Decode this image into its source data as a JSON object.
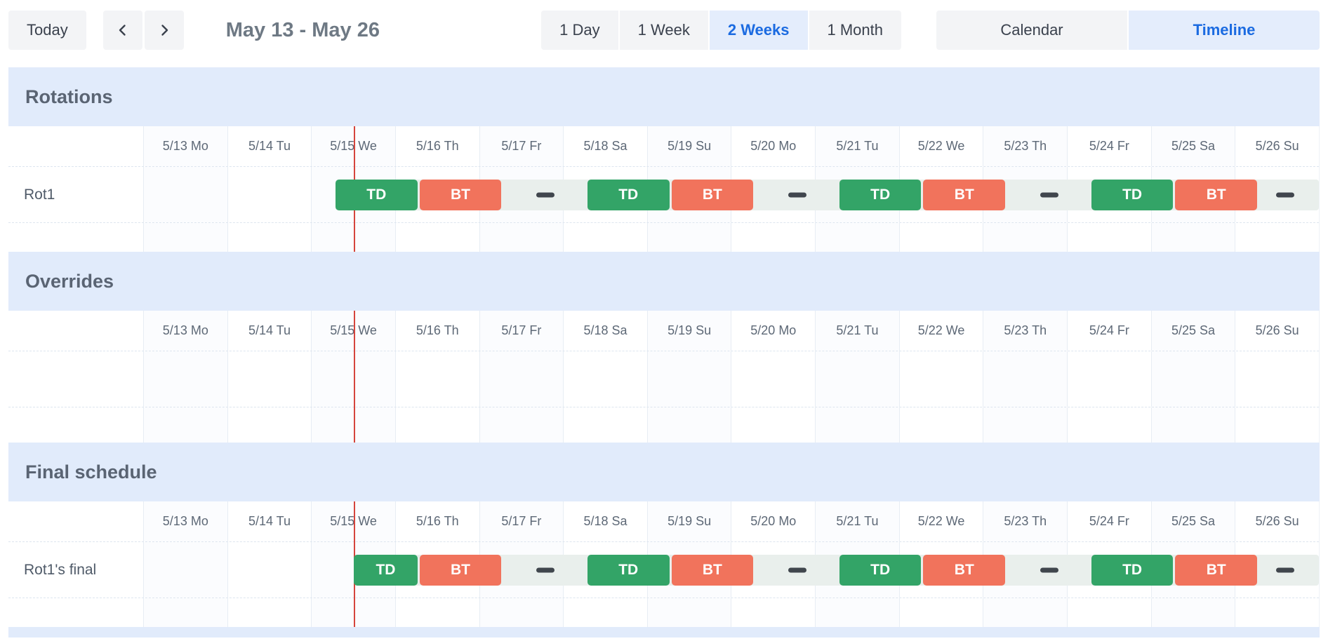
{
  "toolbar": {
    "today_label": "Today",
    "title": "May 13 - May 26",
    "range_options": [
      {
        "label": "1 Day",
        "selected": false
      },
      {
        "label": "1 Week",
        "selected": false
      },
      {
        "label": "2 Weeks",
        "selected": true
      },
      {
        "label": "1 Month",
        "selected": false
      }
    ],
    "view_options": [
      {
        "label": "Calendar",
        "selected": false
      },
      {
        "label": "Timeline",
        "selected": true
      }
    ],
    "icons": {
      "prev": "chevron-left",
      "next": "chevron-right"
    }
  },
  "days_total": 14,
  "dates": [
    "5/13 Mo",
    "5/14 Tu",
    "5/15 We",
    "5/16 Th",
    "5/17 Fr",
    "5/18 Sa",
    "5/19 Su",
    "5/20 Mo",
    "5/21 Tu",
    "5/22 We",
    "5/23 Th",
    "5/24 Fr",
    "5/25 Sa",
    "5/26 Su"
  ],
  "current_time_day": 2.51,
  "colors": {
    "td_shift": "#33a467",
    "bt_shift": "#f1735c",
    "gap_dash": "#40464d",
    "track": "#e9efec",
    "current_line": "#d5453c",
    "section_header_bg": "#e1ebfb",
    "accent_blue": "#1b6be1",
    "selected_bg": "#e4edfc"
  },
  "sections": [
    {
      "title": "Rotations",
      "rows": [
        {
          "label": "Rot1",
          "track_start": 2.29,
          "events": [
            {
              "type": "shift",
              "label": "TD",
              "start": 2.29,
              "end": 3.29
            },
            {
              "type": "shift",
              "label": "BT",
              "start": 3.29,
              "end": 4.29
            },
            {
              "type": "gap",
              "center": 4.79
            },
            {
              "type": "shift",
              "label": "TD",
              "start": 5.29,
              "end": 6.29
            },
            {
              "type": "shift",
              "label": "BT",
              "start": 6.29,
              "end": 7.29
            },
            {
              "type": "gap",
              "center": 7.79
            },
            {
              "type": "shift",
              "label": "TD",
              "start": 8.29,
              "end": 9.29
            },
            {
              "type": "shift",
              "label": "BT",
              "start": 9.29,
              "end": 10.29
            },
            {
              "type": "gap",
              "center": 10.79
            },
            {
              "type": "shift",
              "label": "TD",
              "start": 11.29,
              "end": 12.29
            },
            {
              "type": "shift",
              "label": "BT",
              "start": 12.29,
              "end": 13.29
            },
            {
              "type": "gap",
              "center": 13.6
            }
          ]
        }
      ]
    },
    {
      "title": "Overrides",
      "rows": []
    },
    {
      "title": "Final schedule",
      "rows": [
        {
          "label": "Rot1's final",
          "track_start": 2.51,
          "events": [
            {
              "type": "shift",
              "label": "TD",
              "start": 2.51,
              "end": 3.29
            },
            {
              "type": "shift",
              "label": "BT",
              "start": 3.29,
              "end": 4.29
            },
            {
              "type": "gap",
              "center": 4.79
            },
            {
              "type": "shift",
              "label": "TD",
              "start": 5.29,
              "end": 6.29
            },
            {
              "type": "shift",
              "label": "BT",
              "start": 6.29,
              "end": 7.29
            },
            {
              "type": "gap",
              "center": 7.79
            },
            {
              "type": "shift",
              "label": "TD",
              "start": 8.29,
              "end": 9.29
            },
            {
              "type": "shift",
              "label": "BT",
              "start": 9.29,
              "end": 10.29
            },
            {
              "type": "gap",
              "center": 10.79
            },
            {
              "type": "shift",
              "label": "TD",
              "start": 11.29,
              "end": 12.29
            },
            {
              "type": "shift",
              "label": "BT",
              "start": 12.29,
              "end": 13.29
            },
            {
              "type": "gap",
              "center": 13.6
            }
          ]
        }
      ]
    }
  ]
}
